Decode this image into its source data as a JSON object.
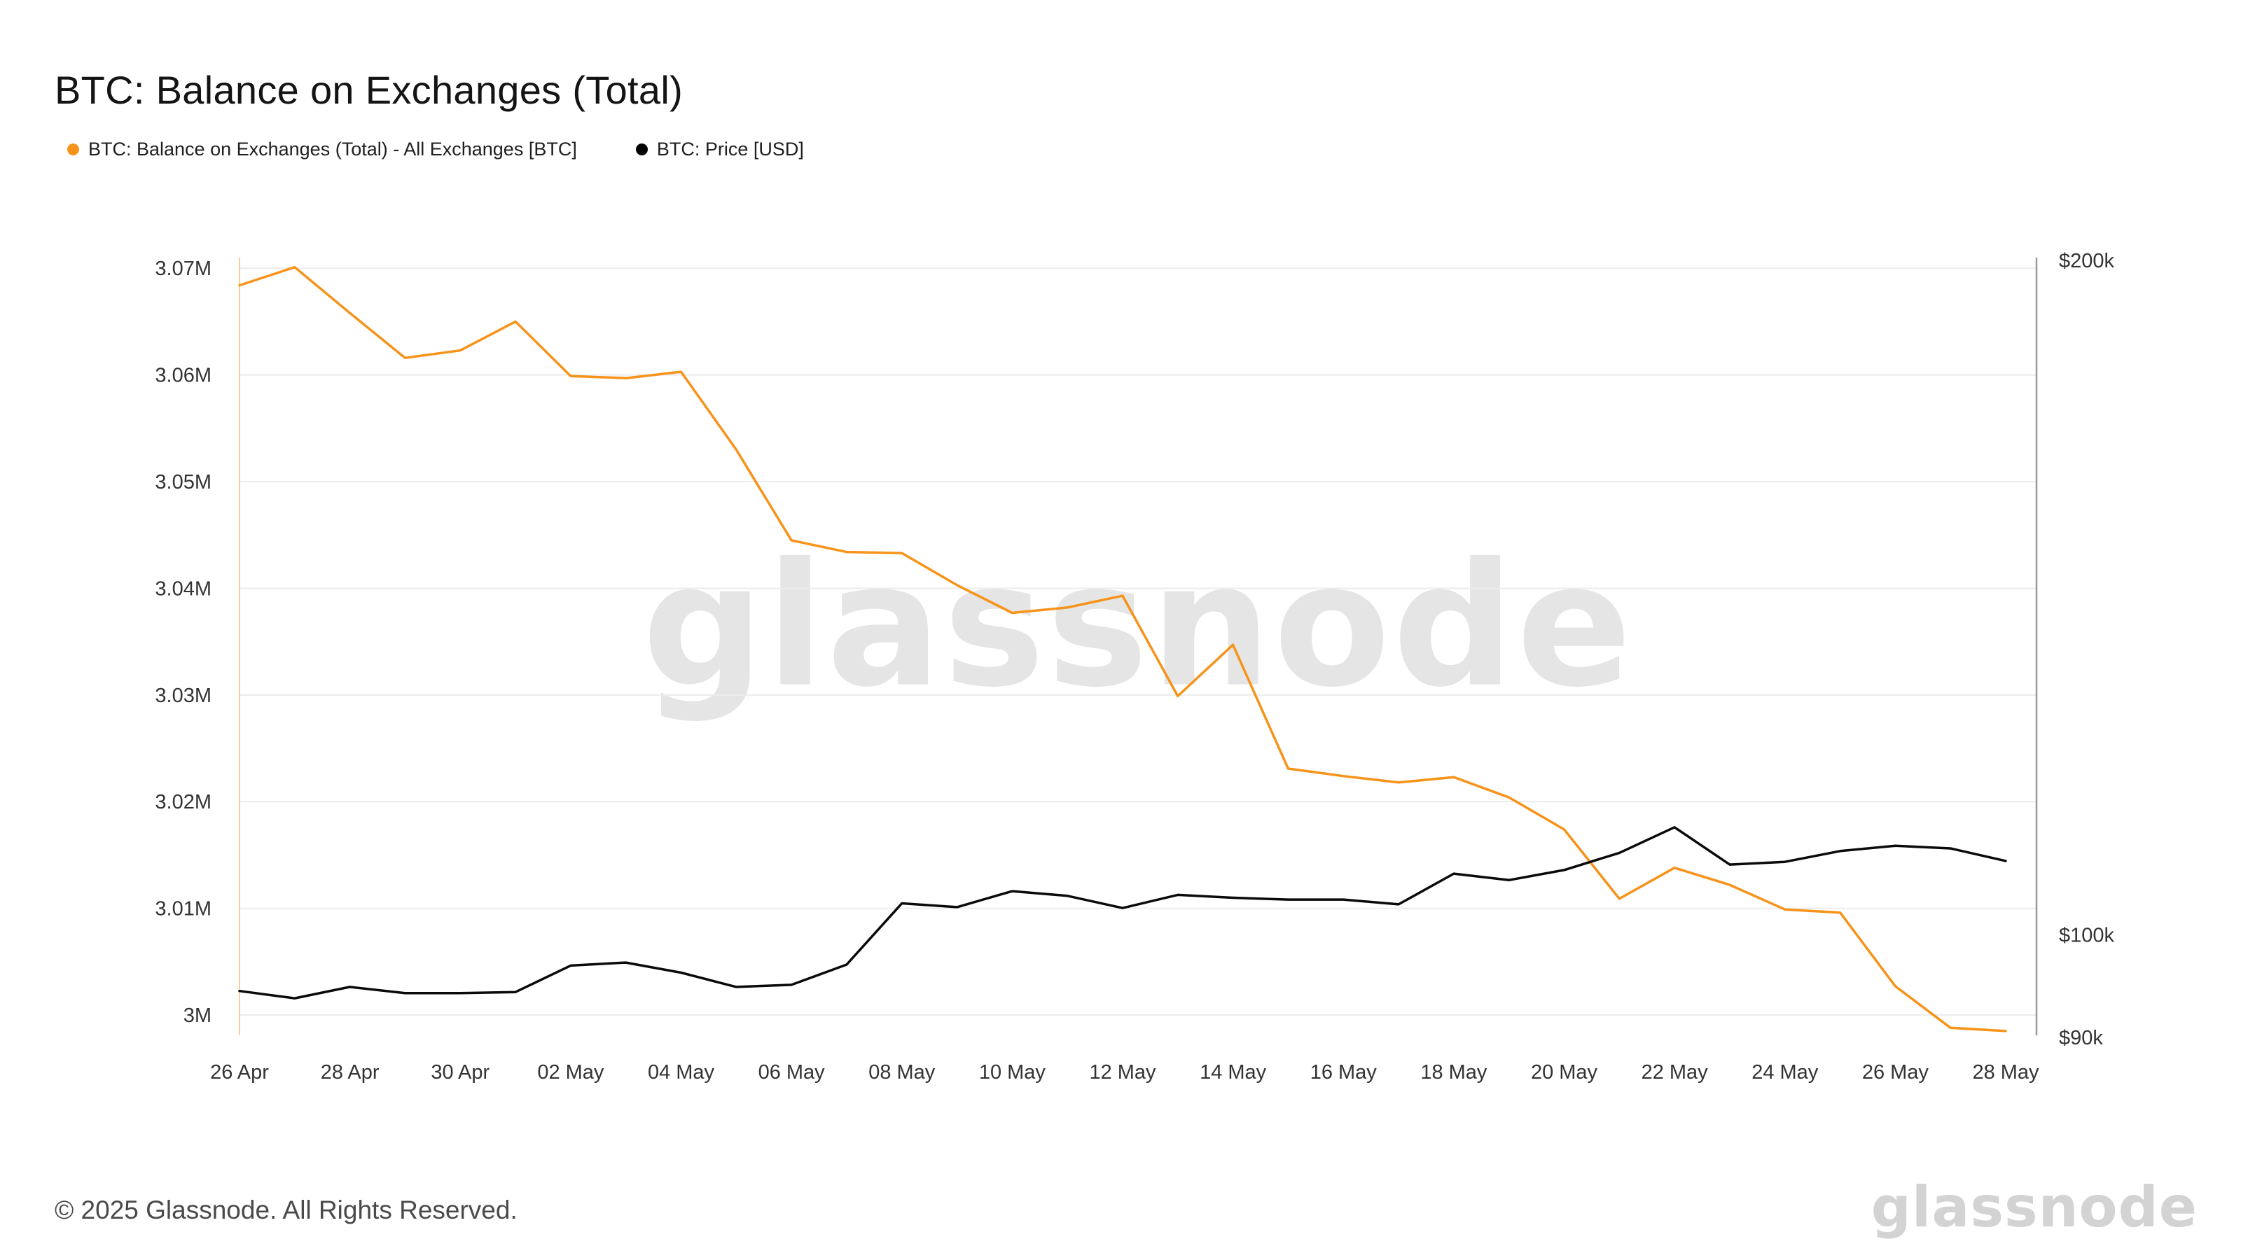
{
  "header": {
    "title": "BTC: Balance on Exchanges (Total)"
  },
  "legend": {
    "items": [
      {
        "label": "BTC: Balance on Exchanges (Total) - All Exchanges [BTC]",
        "color": "#f7931a"
      },
      {
        "label": "BTC: Price [USD]",
        "color": "#000000"
      }
    ]
  },
  "watermark": {
    "text": "glassnode"
  },
  "footer": {
    "copyright": "© 2025 Glassnode. All Rights Reserved.",
    "brand": "glassnode"
  },
  "chart_data": {
    "type": "line",
    "title": "BTC: Balance on Exchanges (Total)",
    "x": [
      "26 Apr",
      "27 Apr",
      "28 Apr",
      "29 Apr",
      "30 Apr",
      "01 May",
      "02 May",
      "03 May",
      "04 May",
      "05 May",
      "06 May",
      "07 May",
      "08 May",
      "09 May",
      "10 May",
      "11 May",
      "12 May",
      "13 May",
      "14 May",
      "15 May",
      "16 May",
      "17 May",
      "18 May",
      "19 May",
      "20 May",
      "21 May",
      "22 May",
      "23 May",
      "24 May",
      "25 May",
      "26 May",
      "27 May",
      "28 May"
    ],
    "x_tick_labels": [
      "26 Apr",
      "28 Apr",
      "30 Apr",
      "02 May",
      "04 May",
      "06 May",
      "08 May",
      "10 May",
      "12 May",
      "14 May",
      "16 May",
      "18 May",
      "20 May",
      "22 May",
      "24 May",
      "26 May",
      "28 May"
    ],
    "series": [
      {
        "name": "BTC: Balance on Exchanges (Total) - All Exchanges [BTC]",
        "axis": "left",
        "color": "#f7931a",
        "unit": "BTC",
        "values": [
          3068400,
          3070100,
          3065800,
          3061600,
          3062300,
          3065000,
          3059900,
          3059700,
          3060300,
          3053000,
          3044500,
          3043400,
          3043300,
          3040300,
          3037700,
          3038200,
          3039300,
          3029900,
          3034700,
          3023100,
          3022400,
          3021800,
          3022300,
          3020400,
          3017400,
          3010900,
          3013800,
          3012200,
          3009900,
          3009600,
          3002700,
          2998800,
          2998500
        ]
      },
      {
        "name": "BTC: Price [USD]",
        "axis": "right",
        "color": "#0a0a0a",
        "unit": "USD",
        "values": [
          94400,
          93700,
          94800,
          94200,
          94200,
          94300,
          96900,
          97200,
          96200,
          94800,
          95000,
          97000,
          103300,
          102900,
          104600,
          104100,
          102800,
          104200,
          103900,
          103700,
          103700,
          103200,
          106500,
          105800,
          106900,
          108800,
          111700,
          107500,
          107800,
          109000,
          109600,
          109300,
          107900
        ]
      }
    ],
    "left_axis": {
      "scale": "linear",
      "grid": true,
      "range": [
        2998100,
        3071000
      ],
      "ticks": [
        {
          "value": 3000000,
          "label": "3M"
        },
        {
          "value": 3010000,
          "label": "3.01M"
        },
        {
          "value": 3020000,
          "label": "3.02M"
        },
        {
          "value": 3030000,
          "label": "3.03M"
        },
        {
          "value": 3040000,
          "label": "3.04M"
        },
        {
          "value": 3050000,
          "label": "3.05M"
        },
        {
          "value": 3060000,
          "label": "3.06M"
        },
        {
          "value": 3070000,
          "label": "3.07M"
        }
      ]
    },
    "right_axis": {
      "scale": "log",
      "grid": false,
      "range": [
        90200,
        200600
      ],
      "ticks": [
        {
          "value": 90000,
          "label": "$90k"
        },
        {
          "value": 100000,
          "label": "$100k"
        },
        {
          "value": 200000,
          "label": "$200k"
        }
      ]
    },
    "legend_position": "top-left",
    "colors": {
      "grid": "#ececec",
      "axis_line": "#9a9a9a",
      "tick_text": "#333333"
    }
  }
}
